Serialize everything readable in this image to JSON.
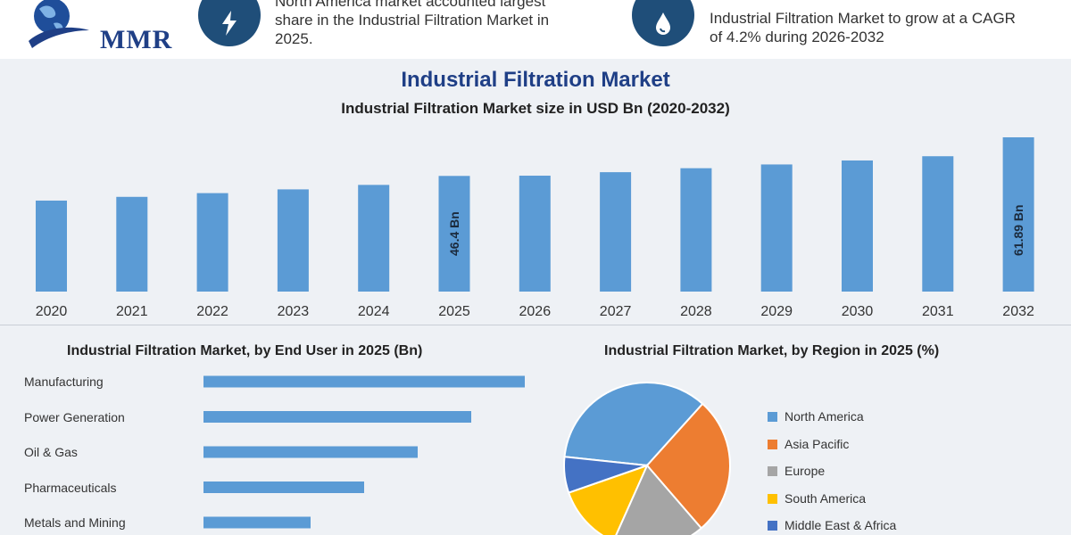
{
  "header": {
    "logo_text": "MMR",
    "stat_left": {
      "line1": "North America market accounted largest",
      "line2": "share in the Industrial Filtration Market in",
      "line3": "2025."
    },
    "stat_right": {
      "line1": "Industrial Filtration Market to grow at a CAGR",
      "line2": "of 4.2% during 2026-2032"
    }
  },
  "main_title": "Industrial Filtration Market",
  "colors": {
    "bar": "#5b9bd5",
    "title_blue": "#1f3f86",
    "circle": "#1f4e79"
  },
  "chart_data": [
    {
      "type": "bar",
      "title": "Industrial Filtration Market size in USD Bn (2020-2032)",
      "categories": [
        "2020",
        "2021",
        "2022",
        "2023",
        "2024",
        "2025",
        "2026",
        "2027",
        "2028",
        "2029",
        "2030",
        "2031",
        "2032"
      ],
      "values": [
        36.5,
        38.0,
        39.5,
        41.0,
        42.8,
        46.4,
        46.5,
        47.9,
        49.5,
        51.0,
        52.6,
        54.3,
        61.89
      ],
      "data_labels": [
        {
          "index": 5,
          "text": "46.4 Bn"
        },
        {
          "index": 12,
          "text": "61.89 Bn"
        }
      ],
      "grid": false
    },
    {
      "type": "bar",
      "orientation": "horizontal",
      "title": "Industrial Filtration Market, by End User in 2025 (Bn)",
      "categories": [
        "Manufacturing",
        "Power Generation",
        "Oil & Gas",
        "Pharmaceuticals",
        "Metals and Mining"
      ],
      "values": [
        12,
        10,
        8,
        6,
        4
      ]
    },
    {
      "type": "pie",
      "title": "Industrial Filtration Market, by Region in 2025 (%)",
      "series": [
        {
          "name": "North America",
          "value": 35,
          "color": "#5b9bd5"
        },
        {
          "name": "Asia Pacific",
          "value": 27,
          "color": "#ed7d31"
        },
        {
          "name": "Europe",
          "value": 18,
          "color": "#a5a5a5"
        },
        {
          "name": "South America",
          "value": 13,
          "color": "#ffc000"
        },
        {
          "name": "Middle East & Africa",
          "value": 7,
          "color": "#4472c4"
        }
      ],
      "legend": "right"
    }
  ]
}
